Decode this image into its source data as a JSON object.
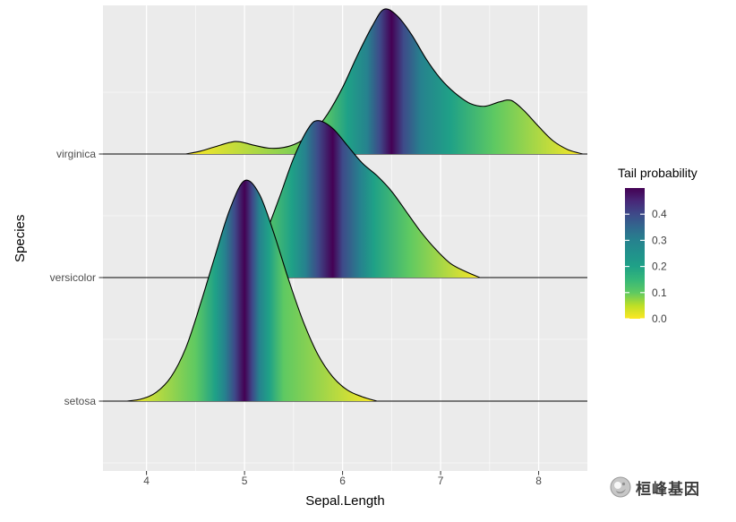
{
  "figure": {
    "background": "#FFFFFF",
    "panel_bg": "#EBEBEB",
    "grid_color": "#FFFFFF",
    "outline_color": "#000000",
    "axis_text_color": "#4D4D4D",
    "axis_title_color": "#000000"
  },
  "axes": {
    "x": {
      "label": "Sepal.Length",
      "tick_labels": [
        "4",
        "5",
        "6",
        "7",
        "8"
      ],
      "tick_values": [
        4,
        5,
        6,
        7,
        8
      ],
      "minor_tick_values": [
        4.5,
        5.5,
        6.5,
        7.5
      ],
      "range": [
        3.556,
        8.497
      ]
    },
    "y": {
      "label": "Species",
      "categories": [
        "setosa",
        "versicolor",
        "virginica"
      ]
    }
  },
  "legend": {
    "title": "Tail probability",
    "tick_labels": [
      "0.4",
      "0.3",
      "0.2",
      "0.1",
      "0.0"
    ],
    "tick_values": [
      0.4,
      0.3,
      0.2,
      0.1,
      0.0
    ],
    "value_range": [
      0,
      0.5
    ]
  },
  "colormap": [
    [
      0.0,
      "#FDE725"
    ],
    [
      0.05,
      "#BDDF26"
    ],
    [
      0.1,
      "#5EC962"
    ],
    [
      0.15,
      "#35B779"
    ],
    [
      0.2,
      "#1FA187"
    ],
    [
      0.25,
      "#21918C"
    ],
    [
      0.3,
      "#26828E"
    ],
    [
      0.35,
      "#31688E"
    ],
    [
      0.4,
      "#3E4A89"
    ],
    [
      0.45,
      "#482878"
    ],
    [
      0.5,
      "#440154"
    ]
  ],
  "watermark": {
    "text": "桓峰基因"
  },
  "chart_data": {
    "type": "area",
    "subtype": "ridgeline-density-gradient",
    "x_variable": "Sepal.Length",
    "group_variable": "Species",
    "fill_variable": "Tail probability",
    "x_range_shown": [
      3.556,
      8.497
    ],
    "series": [
      {
        "name": "setosa",
        "max_density": 1.25,
        "density": [
          [
            3.8,
            0.0
          ],
          [
            3.95,
            0.01
          ],
          [
            4.1,
            0.04
          ],
          [
            4.25,
            0.11
          ],
          [
            4.4,
            0.24
          ],
          [
            4.55,
            0.44
          ],
          [
            4.7,
            0.66
          ],
          [
            4.85,
            0.87
          ],
          [
            5.0,
            1.0
          ],
          [
            5.15,
            0.94
          ],
          [
            5.3,
            0.76
          ],
          [
            5.45,
            0.55
          ],
          [
            5.6,
            0.36
          ],
          [
            5.75,
            0.21
          ],
          [
            5.9,
            0.11
          ],
          [
            6.05,
            0.05
          ],
          [
            6.2,
            0.02
          ],
          [
            6.35,
            0.0
          ]
        ],
        "tail_quantiles": [
          [
            3.8,
            0.0
          ],
          [
            4.5,
            0.1
          ],
          [
            4.7,
            0.2
          ],
          [
            4.8,
            0.3
          ],
          [
            4.9,
            0.4
          ],
          [
            5.0,
            0.5
          ],
          [
            5.08,
            0.4
          ],
          [
            5.15,
            0.3
          ],
          [
            5.25,
            0.2
          ],
          [
            5.4,
            0.1
          ],
          [
            6.35,
            0.0
          ]
        ]
      },
      {
        "name": "versicolor",
        "max_density": 0.89,
        "density": [
          [
            4.75,
            0.0
          ],
          [
            4.9,
            0.03
          ],
          [
            5.05,
            0.1
          ],
          [
            5.2,
            0.26
          ],
          [
            5.35,
            0.5
          ],
          [
            5.5,
            0.76
          ],
          [
            5.65,
            0.95
          ],
          [
            5.75,
            1.0
          ],
          [
            5.9,
            0.95
          ],
          [
            6.05,
            0.84
          ],
          [
            6.2,
            0.73
          ],
          [
            6.35,
            0.65
          ],
          [
            6.5,
            0.55
          ],
          [
            6.65,
            0.42
          ],
          [
            6.8,
            0.29
          ],
          [
            6.95,
            0.18
          ],
          [
            7.1,
            0.09
          ],
          [
            7.25,
            0.04
          ],
          [
            7.4,
            0.0
          ]
        ],
        "tail_quantiles": [
          [
            4.75,
            0.0
          ],
          [
            5.2,
            0.1
          ],
          [
            5.48,
            0.2
          ],
          [
            5.62,
            0.3
          ],
          [
            5.75,
            0.4
          ],
          [
            5.9,
            0.5
          ],
          [
            6.0,
            0.4
          ],
          [
            6.18,
            0.3
          ],
          [
            6.32,
            0.2
          ],
          [
            6.68,
            0.1
          ],
          [
            7.4,
            0.0
          ]
        ]
      },
      {
        "name": "virginica",
        "max_density": 0.82,
        "density": [
          [
            4.4,
            0.0
          ],
          [
            4.55,
            0.02
          ],
          [
            4.7,
            0.05
          ],
          [
            4.85,
            0.08
          ],
          [
            4.95,
            0.085
          ],
          [
            5.1,
            0.06
          ],
          [
            5.25,
            0.04
          ],
          [
            5.4,
            0.045
          ],
          [
            5.55,
            0.08
          ],
          [
            5.7,
            0.15
          ],
          [
            5.85,
            0.28
          ],
          [
            6.0,
            0.46
          ],
          [
            6.15,
            0.68
          ],
          [
            6.3,
            0.88
          ],
          [
            6.42,
            1.0
          ],
          [
            6.55,
            0.96
          ],
          [
            6.7,
            0.83
          ],
          [
            6.85,
            0.66
          ],
          [
            7.0,
            0.52
          ],
          [
            7.15,
            0.42
          ],
          [
            7.3,
            0.35
          ],
          [
            7.45,
            0.33
          ],
          [
            7.6,
            0.36
          ],
          [
            7.72,
            0.37
          ],
          [
            7.85,
            0.3
          ],
          [
            8.0,
            0.19
          ],
          [
            8.15,
            0.09
          ],
          [
            8.3,
            0.03
          ],
          [
            8.45,
            0.0
          ]
        ],
        "tail_quantiles": [
          [
            4.4,
            0.0
          ],
          [
            5.8,
            0.1
          ],
          [
            6.05,
            0.2
          ],
          [
            6.25,
            0.3
          ],
          [
            6.38,
            0.4
          ],
          [
            6.5,
            0.5
          ],
          [
            6.62,
            0.4
          ],
          [
            6.8,
            0.3
          ],
          [
            7.1,
            0.2
          ],
          [
            7.55,
            0.1
          ],
          [
            8.45,
            0.0
          ]
        ]
      }
    ]
  }
}
